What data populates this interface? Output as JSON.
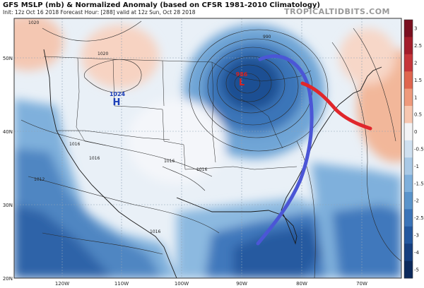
{
  "header": {
    "title": "GFS MSLP (mb) & Normalized Anomaly (based on CFSR 1981-2010 Climatology)",
    "init_line": "Init: 12z Oct 16 2018   Forecast Hour: [288]   valid at 12z Sun, Oct 28 2018",
    "brand": "TROPICALTIDBITS.COM"
  },
  "map": {
    "lat_labels": [
      "50N",
      "40N",
      "30N",
      "20N"
    ],
    "lon_labels": [
      "120W",
      "110W",
      "100W",
      "90W",
      "80W",
      "70W"
    ],
    "colorbar_ticks": [
      "3",
      "2.5",
      "2",
      "1.5",
      "1",
      "0.5",
      "0",
      "-0.5",
      "-1",
      "-1.5",
      "-2",
      "-2.5",
      "-3",
      "-4",
      "-5"
    ],
    "high_center": {
      "marker": "H",
      "pressure": "1024"
    },
    "low_center": {
      "marker": "L",
      "pressure": "986"
    },
    "contour_labels": [
      "1020",
      "1020",
      "1016",
      "1016",
      "1016",
      "1016",
      "1016",
      "1012",
      "990"
    ],
    "colors": {
      "strong_negative": "#1f4f93",
      "negative": "#5d95cb",
      "weak_negative": "#b9d4ea",
      "neutral": "#f2f5f8",
      "positive": "#f3c3ad",
      "cold_front": "#4b56d6",
      "warm_front": "#e0262b",
      "high_label": "#1c3fb8",
      "low_label": "#d61f1f"
    }
  }
}
